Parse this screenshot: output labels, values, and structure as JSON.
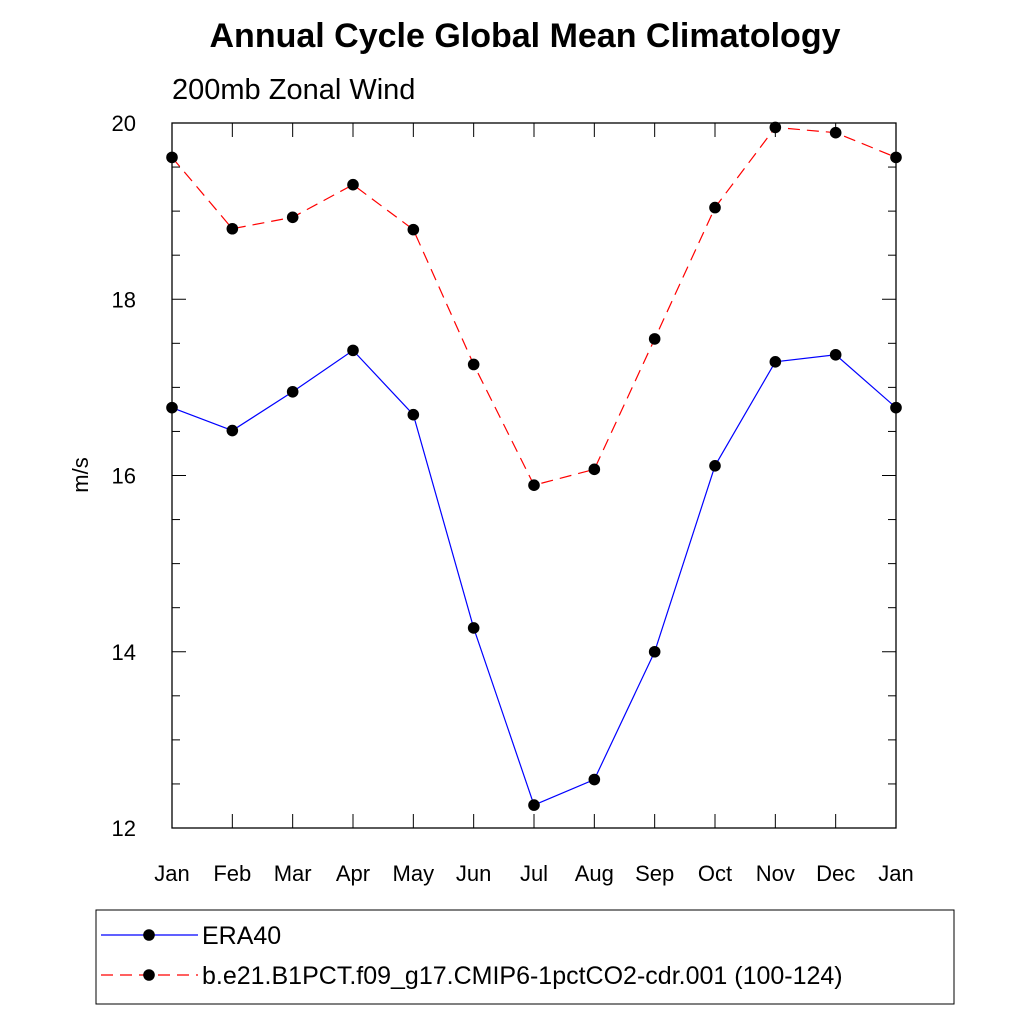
{
  "chart_data": {
    "type": "line",
    "title": "Annual Cycle Global Mean Climatology",
    "subtitle": "200mb Zonal Wind",
    "xlabel": "",
    "ylabel": "m/s",
    "categories": [
      "Jan",
      "Feb",
      "Mar",
      "Apr",
      "May",
      "Jun",
      "Jul",
      "Aug",
      "Sep",
      "Oct",
      "Nov",
      "Dec",
      "Jan"
    ],
    "ylim": [
      12,
      20
    ],
    "yticks": [
      12,
      14,
      16,
      18,
      20
    ],
    "y_minor_step": 0.5,
    "grid": false,
    "legend_position": "bottom",
    "series": [
      {
        "name": "ERA40",
        "color": "#0000ff",
        "line_style": "solid",
        "marker": "filled-circle",
        "values": [
          16.77,
          16.51,
          16.95,
          17.42,
          16.69,
          14.27,
          12.26,
          12.55,
          14.0,
          16.11,
          17.29,
          17.37,
          16.77
        ]
      },
      {
        "name": "b.e21.B1PCT.f09_g17.CMIP6-1pctCO2-cdr.001 (100-124)",
        "color": "#ff0000",
        "line_style": "dashed",
        "marker": "filled-circle",
        "values": [
          19.61,
          18.8,
          18.93,
          19.3,
          18.79,
          17.26,
          15.89,
          16.07,
          17.55,
          19.04,
          19.95,
          19.89,
          19.61
        ]
      }
    ]
  }
}
